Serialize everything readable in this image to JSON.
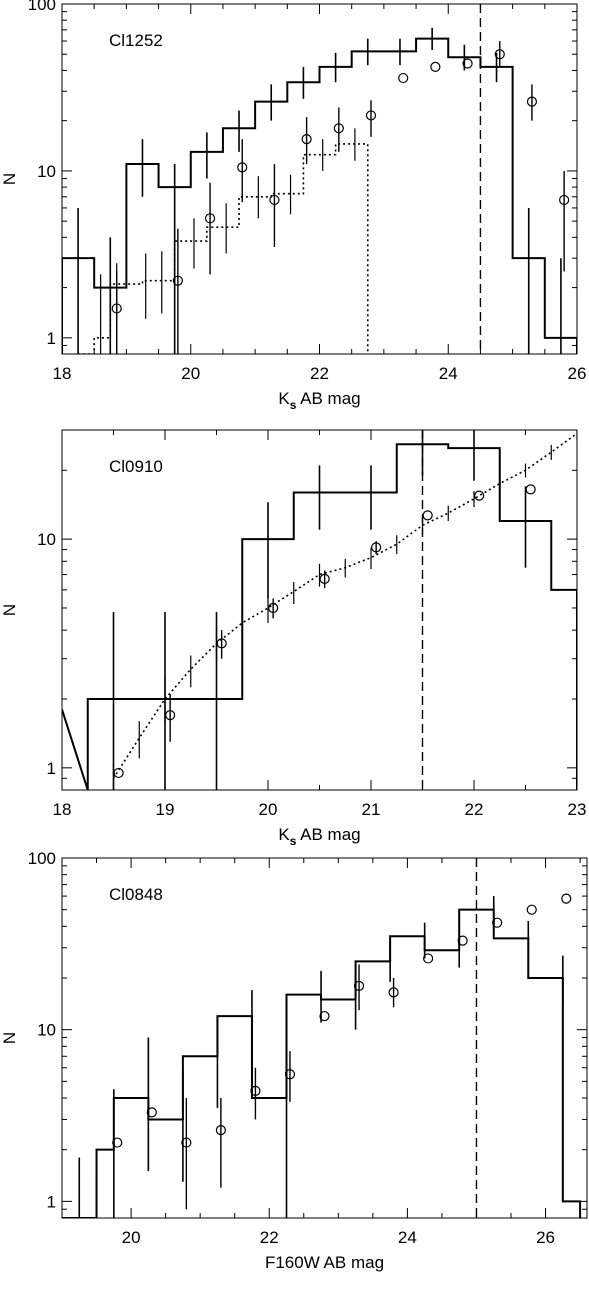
{
  "chart_data": [
    {
      "type": "step-histogram",
      "panel_label": "Cl1252",
      "xlabel_main": "K",
      "xlabel_sub": "s",
      "xlabel_rest": " AB mag",
      "ylabel": "N",
      "xlim": [
        18,
        26
      ],
      "ylim": [
        0.8,
        100
      ],
      "yscale": "log",
      "xticks": [
        18,
        20,
        22,
        24,
        26
      ],
      "xtick_labels": [
        "18",
        "20",
        "22",
        "24",
        "26"
      ],
      "yticks": [
        1,
        10,
        100
      ],
      "ytick_labels": [
        "1",
        "10",
        "100"
      ],
      "xminor": [
        18.5,
        19,
        19.5,
        20.5,
        21,
        21.5,
        22.5,
        23,
        23.5,
        24.5,
        25,
        25.5
      ],
      "completeness_limit": 24.5,
      "histogram": {
        "edges": [
          18,
          18.5,
          19,
          19.5,
          20,
          20.5,
          21,
          21.5,
          22,
          22.5,
          23,
          23.5,
          24,
          24.5,
          25,
          25.5,
          26
        ],
        "values": [
          3,
          2,
          11,
          8,
          13,
          18,
          26,
          34,
          42,
          52,
          52,
          62,
          48,
          42,
          3,
          1
        ],
        "errors": [
          [
            18.25,
            0.8,
            6
          ],
          [
            18.75,
            0.8,
            4
          ],
          [
            19.25,
            7,
            15.5
          ],
          [
            19.75,
            0.8,
            11
          ],
          [
            20.25,
            9,
            17
          ],
          [
            20.75,
            13,
            23
          ],
          [
            21.25,
            20,
            33
          ],
          [
            21.75,
            27,
            42
          ],
          [
            22.25,
            34,
            51
          ],
          [
            22.75,
            43,
            62
          ],
          [
            23.25,
            43,
            62
          ],
          [
            23.75,
            53,
            72
          ],
          [
            24.25,
            40,
            57
          ],
          [
            24.75,
            34,
            51
          ],
          [
            25.25,
            0.8,
            6
          ],
          [
            25.75,
            0.8,
            3
          ]
        ]
      },
      "comparison": {
        "edges": [
          18.25,
          18.5,
          18.75,
          19.25,
          19.75,
          20.25,
          20.75,
          21.25,
          21.75,
          22.25,
          22.75
        ],
        "values": [
          0.8,
          1,
          2.1,
          2.2,
          3.8,
          4.6,
          7,
          7.3,
          12.5,
          14.5
        ],
        "x": [
          18.6,
          18.85,
          19.3,
          19.55,
          20.05,
          20.55,
          21.05,
          21.55,
          22.05,
          22.55
        ],
        "ylow": [
          0.8,
          0.8,
          1.3,
          1.4,
          2.6,
          3.2,
          5.2,
          5.5,
          10,
          11.5
        ],
        "yhigh": [
          2.4,
          2.8,
          3.2,
          3.3,
          5.2,
          6.4,
          9.3,
          9.5,
          15.5,
          18
        ]
      },
      "points": {
        "x": [
          18.85,
          19.8,
          20.3,
          20.8,
          21.3,
          21.8,
          22.3,
          22.8,
          23.3,
          23.8,
          24.3,
          24.8,
          25.3,
          25.8
        ],
        "y": [
          1.5,
          2.2,
          5.2,
          10.5,
          6.7,
          15.5,
          18,
          21.5,
          36,
          42,
          44,
          50,
          26,
          6.7
        ],
        "ylow": [
          0.8,
          0.8,
          2.4,
          6.5,
          3.5,
          11,
          13,
          16,
          0,
          0,
          0,
          42,
          20,
          2.5
        ],
        "yhigh": [
          2.5,
          4.5,
          8.5,
          15.5,
          11,
          21,
          24,
          26.5,
          0,
          0,
          0,
          60,
          33,
          10
        ]
      }
    },
    {
      "type": "step-histogram",
      "panel_label": "Cl0910",
      "xlabel_main": "K",
      "xlabel_sub": "s",
      "xlabel_rest": " AB mag",
      "ylabel": "N",
      "xlim": [
        18,
        23
      ],
      "ylim": [
        0.8,
        30
      ],
      "yscale": "log",
      "xticks": [
        18,
        19,
        20,
        21,
        22,
        23
      ],
      "xtick_labels": [
        "18",
        "19",
        "20",
        "21",
        "22",
        "23"
      ],
      "yticks": [
        1,
        10
      ],
      "ytick_labels": [
        "1",
        "10"
      ],
      "xminor": [
        18.5,
        19.5,
        20.5,
        21.5,
        22.5
      ],
      "completeness_limit": 21.5,
      "histogram": {
        "edges": [
          18.25,
          19.75,
          20.25,
          21.25,
          21.75,
          22.25,
          22.75,
          23
        ],
        "values": [
          2,
          10,
          16,
          26,
          25,
          12,
          6
        ],
        "lead_in": [
          [
            18,
            1.8
          ],
          [
            18.25,
            0.8
          ]
        ],
        "errors": [
          [
            18.5,
            0.8,
            4.8
          ],
          [
            19,
            0.8,
            4.8
          ],
          [
            19.5,
            0.8,
            4.8
          ],
          [
            20,
            5.5,
            14.5
          ],
          [
            20.5,
            11,
            21
          ],
          [
            21,
            11,
            21
          ],
          [
            21.5,
            19,
            33
          ],
          [
            22,
            18,
            32
          ],
          [
            22.5,
            7.5,
            17
          ]
        ]
      },
      "curve": {
        "x": [
          18.5,
          18.75,
          19,
          19.25,
          19.5,
          19.75,
          20,
          20.25,
          20.5,
          20.75,
          21,
          21.25,
          21.5,
          21.75,
          22,
          22.25,
          22.5,
          22.75,
          23
        ],
        "y": [
          0.9,
          1.35,
          2,
          2.7,
          3.5,
          4.3,
          5,
          5.9,
          7,
          7.5,
          8.3,
          9.5,
          11.5,
          13,
          15,
          17.5,
          20,
          24,
          29
        ],
        "ylow": [
          0.8,
          1.1,
          1.55,
          2.25,
          2.95,
          3.6,
          4.3,
          5.2,
          6.2,
          6.8,
          7.4,
          8.6,
          10.5,
          12,
          13.8,
          16.2,
          18.6,
          22.2,
          27
        ],
        "yhigh": [
          1.05,
          1.6,
          2.5,
          3.1,
          4.1,
          5,
          5.6,
          6.5,
          7.8,
          8.2,
          9.2,
          10.4,
          12.5,
          14,
          16.2,
          18.8,
          21.4,
          25.8,
          31
        ]
      },
      "points": {
        "x": [
          18.55,
          19.05,
          19.55,
          20.05,
          20.55,
          21.05,
          21.55,
          22.05,
          22.55
        ],
        "y": [
          0.95,
          1.7,
          3.5,
          5,
          6.7,
          9.2,
          12.7,
          15.5,
          16.5
        ],
        "ylow": [
          0,
          1.3,
          3,
          4.5,
          6.1,
          8.6,
          0,
          0,
          0
        ],
        "yhigh": [
          0,
          2.1,
          4,
          5.5,
          7.3,
          9.8,
          0,
          0,
          0
        ]
      }
    },
    {
      "type": "step-histogram",
      "panel_label": "Cl0848",
      "xlabel": "F160W AB mag",
      "ylabel": "N",
      "xlim": [
        19,
        26.6
      ],
      "ylim": [
        0.8,
        100
      ],
      "yscale": "log",
      "xticks": [
        20,
        22,
        24,
        26
      ],
      "xtick_labels": [
        "20",
        "22",
        "24",
        "26"
      ],
      "yticks": [
        1,
        10,
        100
      ],
      "ytick_labels": [
        "1",
        "10",
        "100"
      ],
      "xminor": [
        19.5,
        20.5,
        21,
        21.5,
        22.5,
        23,
        23.5,
        24.5,
        25,
        25.5,
        26.5
      ],
      "completeness_limit": 25,
      "histogram": {
        "edges": [
          19.5,
          19.75,
          20.25,
          20.75,
          21.25,
          21.75,
          22.25,
          22.75,
          23.25,
          23.75,
          24.25,
          24.75,
          25.25,
          25.75,
          26.25,
          26.5
        ],
        "values": [
          2,
          4,
          3,
          7,
          12,
          4,
          16,
          15,
          25,
          35,
          29,
          50,
          34,
          20,
          1
        ],
        "lead_in": [
          [
            19,
            0.8
          ],
          [
            19.5,
            0.8
          ]
        ],
        "errors": [
          [
            19.25,
            0.8,
            1.8
          ],
          [
            19.5,
            0.8,
            1.4
          ],
          [
            19.75,
            0.8,
            4.5
          ],
          [
            20.25,
            1.5,
            9
          ],
          [
            20.75,
            1.3,
            6
          ],
          [
            21.25,
            3.5,
            12
          ],
          [
            21.75,
            7,
            17
          ],
          [
            22.25,
            0.8,
            9
          ],
          [
            22.75,
            11,
            22
          ],
          [
            23.25,
            10,
            21
          ],
          [
            23.75,
            19,
            33
          ],
          [
            24.25,
            26,
            42
          ],
          [
            24.75,
            23,
            37
          ],
          [
            25.25,
            41,
            60
          ],
          [
            25.75,
            26,
            43
          ],
          [
            26.25,
            14,
            27
          ]
        ]
      },
      "points": {
        "x": [
          19.8,
          20.3,
          20.8,
          21.3,
          21.8,
          22.3,
          22.8,
          23.3,
          23.8,
          24.3,
          24.8,
          25.3,
          25.8,
          26.3
        ],
        "y": [
          2.2,
          3.3,
          2.2,
          2.6,
          4.4,
          5.5,
          12,
          18,
          16.5,
          26,
          33,
          42,
          50,
          58
        ],
        "ylow": [
          0,
          0,
          0.9,
          1.2,
          3,
          3.8,
          0,
          13,
          13.5,
          0,
          0,
          0,
          0,
          0
        ],
        "yhigh": [
          0,
          0,
          4,
          4,
          6,
          7.5,
          0,
          24,
          20,
          0,
          0,
          0,
          0,
          0
        ]
      }
    }
  ]
}
